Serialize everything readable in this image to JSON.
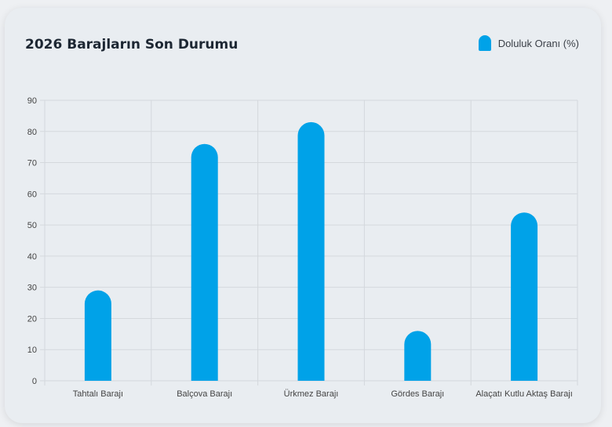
{
  "title": "2026 Barajların Son Durumu",
  "legend_label": "Doluluk Oranı (%)",
  "colors": {
    "bar": "#00a2e8",
    "grid": "#d4d8dd"
  },
  "chart_data": {
    "type": "bar",
    "categories": [
      "Tahtalı Barajı",
      "Balçova Barajı",
      "Ürkmez Barajı",
      "Gördes Barajı",
      "Alaçatı Kutlu Aktaş Barajı"
    ],
    "series": [
      {
        "name": "Doluluk Oranı (%)",
        "values": [
          29,
          76,
          83,
          16,
          54
        ]
      }
    ],
    "ylim": [
      0,
      90
    ],
    "yticks": [
      0,
      10,
      20,
      30,
      40,
      50,
      60,
      70,
      80,
      90
    ],
    "grid": true,
    "legend_position": "top-right"
  }
}
